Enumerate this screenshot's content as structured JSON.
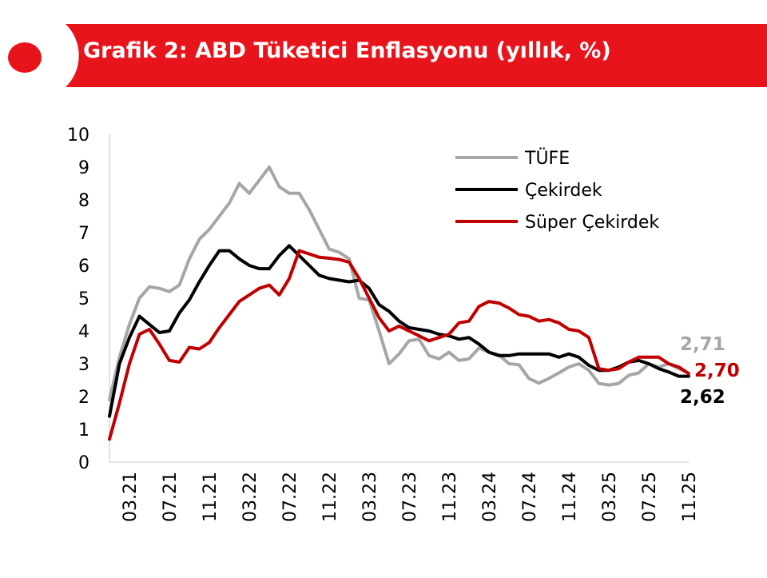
{
  "header": {
    "title": "Grafik 2: ABD Tüketici Enflasyonu (yıllık, %)",
    "accent_color": "#e8141c"
  },
  "chart_data": {
    "type": "line",
    "title": "Grafik 2: ABD Tüketici Enflasyonu (yıllık, %)",
    "xlabel": "",
    "ylabel": "",
    "ylim": [
      0,
      10
    ],
    "yticks": [
      "0",
      "1",
      "2",
      "3",
      "4",
      "5",
      "6",
      "7",
      "8",
      "9",
      "10"
    ],
    "xticks": [
      "03.21",
      "07.21",
      "11.21",
      "03.22",
      "07.22",
      "11.22",
      "03.23",
      "07.23",
      "11.23",
      "03.24",
      "07.24",
      "11.24",
      "03.25",
      "07.25",
      "11.25"
    ],
    "grid": false,
    "legend_position": "top-right",
    "x": [
      "01.21",
      "02.21",
      "03.21",
      "04.21",
      "05.21",
      "06.21",
      "07.21",
      "08.21",
      "09.21",
      "10.21",
      "11.21",
      "12.21",
      "01.22",
      "02.22",
      "03.22",
      "04.22",
      "05.22",
      "06.22",
      "07.22",
      "08.22",
      "09.22",
      "10.22",
      "11.22",
      "12.22",
      "01.23",
      "02.23",
      "03.23",
      "04.23",
      "05.23",
      "06.23",
      "07.23",
      "08.23",
      "09.23",
      "10.23",
      "11.23",
      "12.23",
      "01.24",
      "02.24",
      "03.24",
      "04.24",
      "05.24",
      "06.24",
      "07.24",
      "08.24",
      "09.24",
      "10.24",
      "11.24",
      "12.24",
      "01.25",
      "02.25",
      "03.25",
      "04.25",
      "05.25",
      "06.25",
      "07.25",
      "08.25",
      "09.25",
      "10.25",
      "11.25"
    ],
    "series": [
      {
        "name": "TÜFE",
        "color": "#a6a6a6",
        "values": [
          1.9,
          3.2,
          4.2,
          5.0,
          5.35,
          5.3,
          5.2,
          5.4,
          6.2,
          6.8,
          7.1,
          7.5,
          7.9,
          8.5,
          8.2,
          8.6,
          9.0,
          8.4,
          8.2,
          8.2,
          7.7,
          7.1,
          6.5,
          6.4,
          6.2,
          5.0,
          4.95,
          4.0,
          3.0,
          3.3,
          3.7,
          3.75,
          3.25,
          3.15,
          3.35,
          3.1,
          3.15,
          3.48,
          3.35,
          3.27,
          3.0,
          2.97,
          2.55,
          2.41,
          2.55,
          2.72,
          2.9,
          3.0,
          2.8,
          2.4,
          2.35,
          2.4,
          2.65,
          2.72,
          3.0,
          2.9,
          3.0,
          2.85,
          2.71
        ]
      },
      {
        "name": "Çekirdek",
        "color": "#000000",
        "values": [
          1.4,
          3.0,
          3.8,
          4.45,
          4.2,
          3.95,
          4.0,
          4.55,
          4.95,
          5.5,
          6.0,
          6.45,
          6.45,
          6.2,
          6.0,
          5.9,
          5.9,
          6.3,
          6.6,
          6.3,
          6.0,
          5.7,
          5.6,
          5.55,
          5.5,
          5.55,
          5.3,
          4.8,
          4.6,
          4.3,
          4.1,
          4.05,
          4.0,
          3.9,
          3.85,
          3.75,
          3.8,
          3.6,
          3.35,
          3.25,
          3.25,
          3.3,
          3.3,
          3.3,
          3.3,
          3.2,
          3.3,
          3.2,
          2.95,
          2.8,
          2.8,
          2.9,
          3.05,
          3.1,
          3.0,
          2.85,
          2.75,
          2.62,
          2.62
        ]
      },
      {
        "name": "Süper Çekirdek",
        "color": "#c00000",
        "values": [
          0.7,
          1.8,
          3.0,
          3.9,
          4.05,
          3.6,
          3.1,
          3.05,
          3.5,
          3.45,
          3.65,
          4.1,
          4.5,
          4.9,
          5.1,
          5.3,
          5.4,
          5.1,
          5.6,
          6.45,
          6.35,
          6.25,
          6.22,
          6.18,
          6.1,
          5.6,
          5.0,
          4.4,
          4.0,
          4.15,
          4.0,
          3.85,
          3.7,
          3.8,
          3.9,
          4.25,
          4.3,
          4.75,
          4.9,
          4.85,
          4.7,
          4.5,
          4.45,
          4.3,
          4.35,
          4.25,
          4.05,
          4.0,
          3.8,
          2.85,
          2.8,
          2.85,
          3.05,
          3.2,
          3.2,
          3.2,
          3.0,
          2.9,
          2.7
        ]
      }
    ],
    "end_labels": [
      {
        "series": "TÜFE",
        "text": "2,71",
        "color": "#a6a6a6"
      },
      {
        "series": "Süper Çekirdek",
        "text": "2,70",
        "color": "#c00000"
      },
      {
        "series": "Çekirdek",
        "text": "2,62",
        "color": "#000000"
      }
    ]
  }
}
